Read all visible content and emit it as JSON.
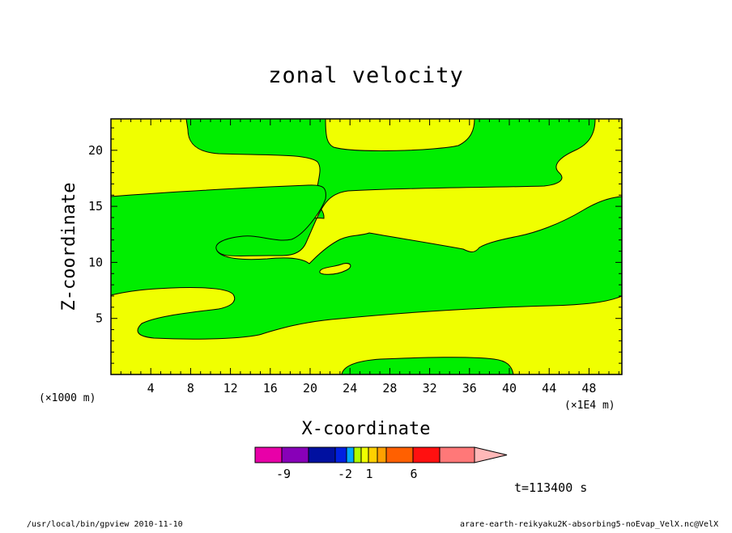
{
  "chart_data": {
    "type": "heatmap",
    "title": "zonal velocity",
    "xlabel": "X-coordinate",
    "ylabel": "Z-coordinate",
    "x_unit_left": "(×1000 m)",
    "x_unit_right": "(×1E4 m)",
    "x_ticks": [
      "4",
      "8",
      "12",
      "16",
      "20",
      "24",
      "28",
      "32",
      "36",
      "40",
      "44",
      "48"
    ],
    "y_ticks": [
      "5",
      "10",
      "15",
      "20"
    ],
    "xlim": [
      0,
      51.3
    ],
    "ylim": [
      0,
      22.8
    ],
    "fill_colors": {
      "positive": "#f0ff00",
      "negative": "#00ee00"
    },
    "colorbar": {
      "colors": [
        "#e800a8",
        "#8800b8",
        "#0010a0",
        "#0020e0",
        "#00a8ff",
        "#b0ff00",
        "#f0ff00",
        "#ffd000",
        "#ffa000",
        "#ff6000",
        "#ff1010",
        "#ff7878",
        "#ffb8b8"
      ],
      "labels": [
        "-9",
        "-2",
        "1",
        "6"
      ]
    },
    "time_label": "t=113400 s"
  },
  "footer": {
    "left": "/usr/local/bin/gpview  2010-11-10",
    "right": "arare-earth-reikyaku2K-absorbing5-noEvap_VelX.nc@VelX"
  }
}
